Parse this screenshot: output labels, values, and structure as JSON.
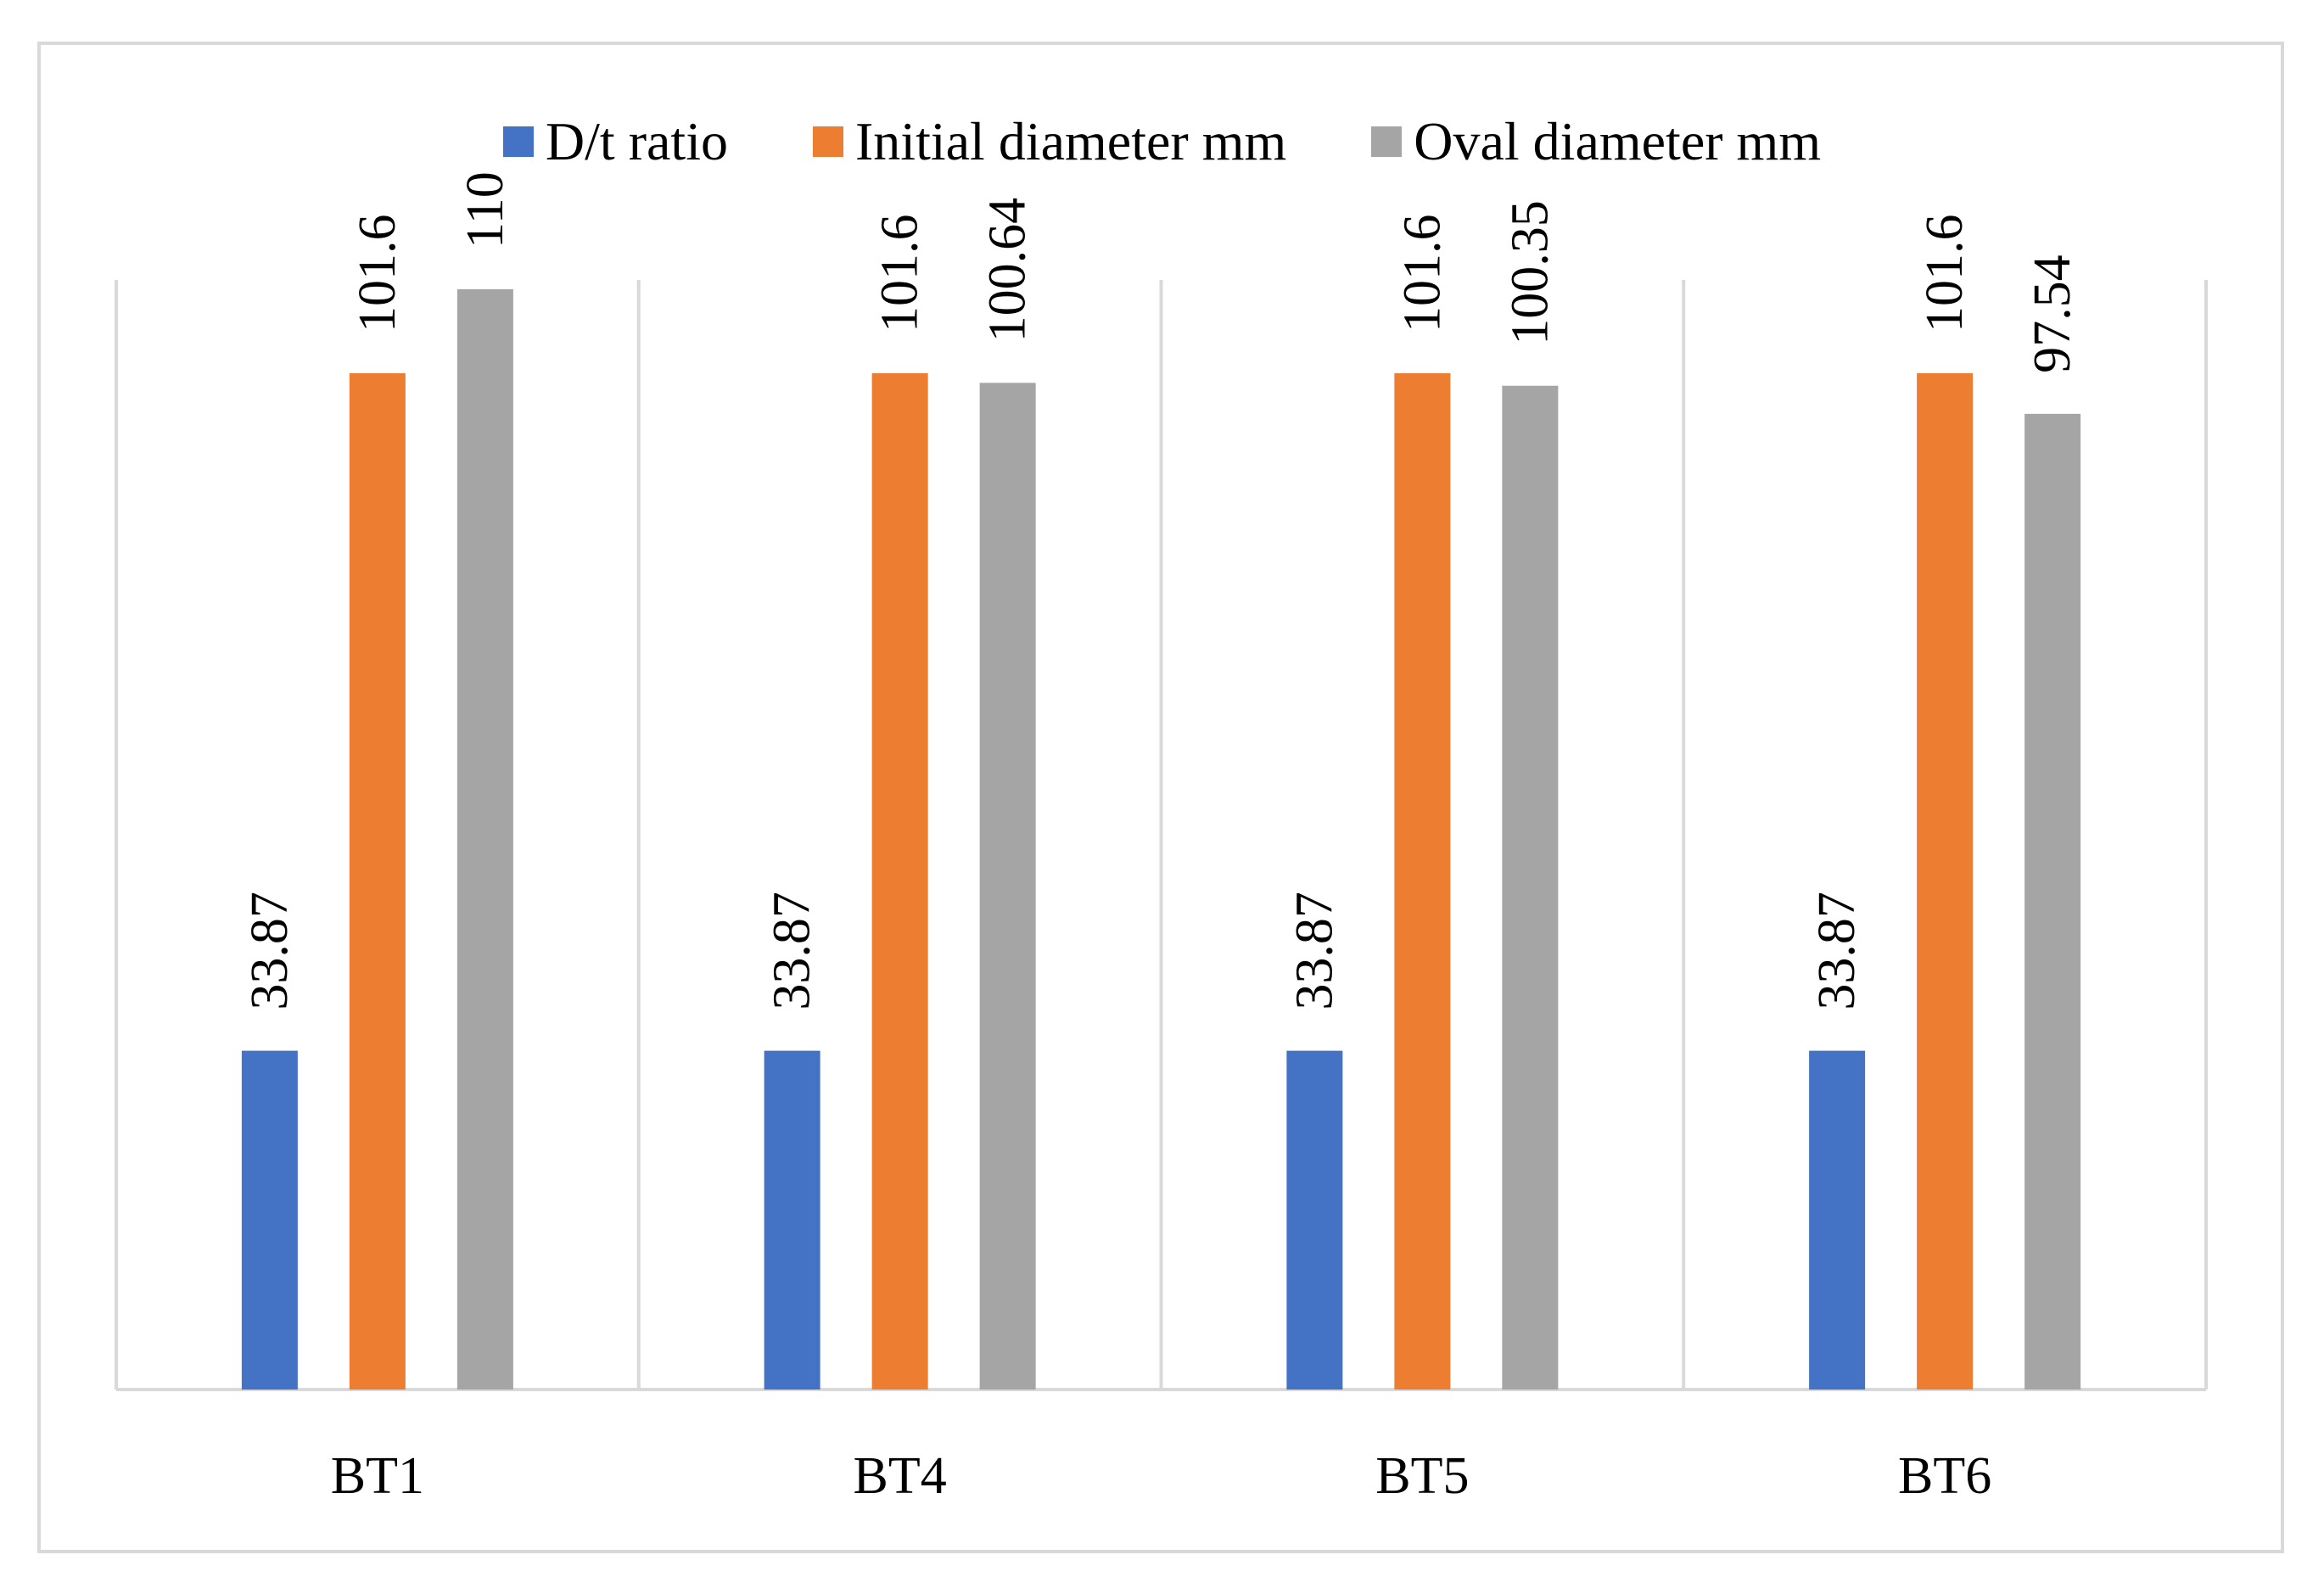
{
  "chart_data": {
    "type": "bar",
    "title": "",
    "xlabel": "",
    "ylabel": "",
    "categories": [
      "BT1",
      "BT4",
      "BT5",
      "BT6"
    ],
    "series": [
      {
        "name": "D/t ratio",
        "color": "#4472c4",
        "values": [
          33.87,
          33.87,
          33.87,
          33.87
        ],
        "labels": [
          "33.87",
          "33.87",
          "33.87",
          "33.87"
        ]
      },
      {
        "name": "Initial diameter mm",
        "color": "#ed7d31",
        "values": [
          101.6,
          101.6,
          101.6,
          101.6
        ],
        "labels": [
          "101.6",
          "101.6",
          "101.6",
          "101.6"
        ]
      },
      {
        "name": "Oval diameter mm",
        "color": "#a5a5a5",
        "values": [
          110,
          100.64,
          100.35,
          97.54
        ],
        "labels": [
          "110",
          "100.64",
          "100.35",
          "97.54"
        ]
      }
    ],
    "ylim": [
      0,
      120
    ],
    "grid": "vertical-category-separators",
    "legend": "top-center"
  }
}
